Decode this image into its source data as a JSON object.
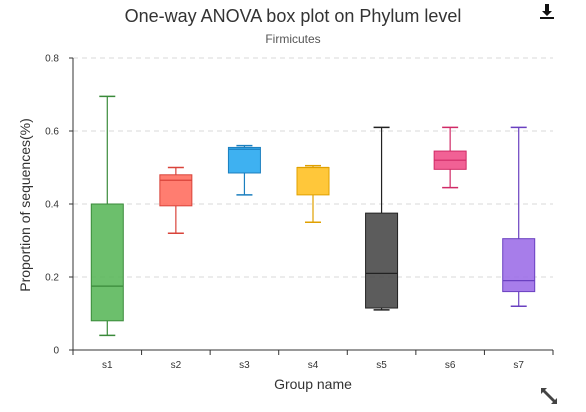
{
  "header": {
    "title": "One-way ANOVA box plot on Phylum level",
    "subtitle": "Firmicutes"
  },
  "toolbar": {
    "download_icon": "download-icon",
    "expand_icon": "expand-icon"
  },
  "chart_data": {
    "type": "boxplot",
    "title": "One-way ANOVA box plot on Phylum level",
    "subtitle": "Firmicutes",
    "xlabel": "Group name",
    "ylabel": "Proportion of sequences(%)",
    "ylim": [
      0,
      0.8
    ],
    "yticks": [
      0,
      0.2,
      0.4,
      0.6,
      0.8
    ],
    "ytick_labels": [
      "0",
      "0.2",
      "0.4",
      "0.6",
      "0.8"
    ],
    "grid": true,
    "groups": [
      {
        "name": "s1",
        "min": 0.04,
        "q1": 0.08,
        "median": 0.175,
        "q3": 0.4,
        "max": 0.695,
        "color": "#5cb85c",
        "stroke": "#3a8a3a"
      },
      {
        "name": "s2",
        "min": 0.32,
        "q1": 0.395,
        "median": 0.465,
        "q3": 0.48,
        "max": 0.5,
        "color": "#ff6f61",
        "stroke": "#d9433a"
      },
      {
        "name": "s3",
        "min": 0.425,
        "q1": 0.485,
        "median": 0.55,
        "q3": 0.555,
        "max": 0.56,
        "color": "#29a9ef",
        "stroke": "#1b7fbf"
      },
      {
        "name": "s4",
        "min": 0.35,
        "q1": 0.425,
        "median": 0.5,
        "q3": 0.5,
        "max": 0.505,
        "color": "#ffc125",
        "stroke": "#e0a000"
      },
      {
        "name": "s5",
        "min": 0.11,
        "q1": 0.115,
        "median": 0.21,
        "q3": 0.375,
        "max": 0.61,
        "color": "#4a4a4a",
        "stroke": "#222222"
      },
      {
        "name": "s6",
        "min": 0.445,
        "q1": 0.495,
        "median": 0.52,
        "q3": 0.545,
        "max": 0.61,
        "color": "#f0508a",
        "stroke": "#d02a66"
      },
      {
        "name": "s7",
        "min": 0.12,
        "q1": 0.16,
        "median": 0.19,
        "q3": 0.305,
        "max": 0.61,
        "color": "#9d6fe8",
        "stroke": "#6a40c0"
      }
    ]
  }
}
